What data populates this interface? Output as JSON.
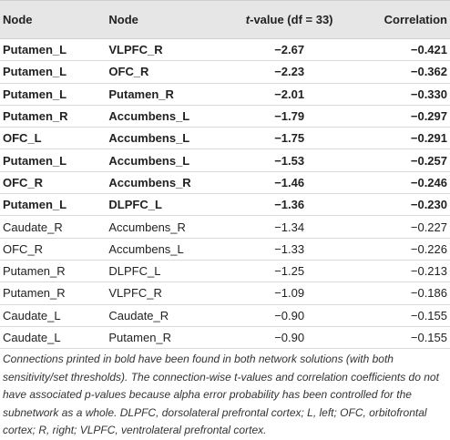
{
  "table": {
    "headers": {
      "node1": "Node",
      "node2": "Node",
      "tvalue_italic": "t",
      "tvalue_rest": "-value (df = 33)",
      "correlation": "Correlation"
    },
    "rows": [
      {
        "node1": "Putamen_L",
        "node2": "VLPFC_R",
        "t": "−2.67",
        "r": "−0.421",
        "bold": true
      },
      {
        "node1": "Putamen_L",
        "node2": "OFC_R",
        "t": "−2.23",
        "r": "−0.362",
        "bold": true
      },
      {
        "node1": "Putamen_L",
        "node2": "Putamen_R",
        "t": "−2.01",
        "r": "−0.330",
        "bold": true
      },
      {
        "node1": "Putamen_R",
        "node2": "Accumbens_L",
        "t": "−1.79",
        "r": "−0.297",
        "bold": true
      },
      {
        "node1": "OFC_L",
        "node2": "Accumbens_L",
        "t": "−1.75",
        "r": "−0.291",
        "bold": true
      },
      {
        "node1": "Putamen_L",
        "node2": "Accumbens_L",
        "t": "−1.53",
        "r": "−0.257",
        "bold": true
      },
      {
        "node1": "OFC_R",
        "node2": "Accumbens_R",
        "t": "−1.46",
        "r": "−0.246",
        "bold": true
      },
      {
        "node1": "Putamen_L",
        "node2": "DLPFC_L",
        "t": "−1.36",
        "r": "−0.230",
        "bold": true
      },
      {
        "node1": "Caudate_R",
        "node2": "Accumbens_R",
        "t": "−1.34",
        "r": "−0.227",
        "bold": false
      },
      {
        "node1": "OFC_R",
        "node2": "Accumbens_L",
        "t": "−1.33",
        "r": "−0.226",
        "bold": false
      },
      {
        "node1": "Putamen_R",
        "node2": "DLPFC_L",
        "t": "−1.25",
        "r": "−0.213",
        "bold": false
      },
      {
        "node1": "Putamen_R",
        "node2": "VLPFC_R",
        "t": "−1.09",
        "r": "−0.186",
        "bold": false
      },
      {
        "node1": "Caudate_L",
        "node2": "Caudate_R",
        "t": "−0.90",
        "r": "−0.155",
        "bold": false
      },
      {
        "node1": "Caudate_L",
        "node2": "Putamen_R",
        "t": "−0.90",
        "r": "−0.155",
        "bold": false
      }
    ]
  },
  "footnote": "Connections printed in bold have been found in both network solutions (with both sensitivity/set thresholds). The connection-wise t-values and correlation coefficients do not have associated p-values because alpha error probability has been controlled for the subnetwork as a whole. DLPFC, dorsolateral prefrontal cortex; L, left; OFC, orbitofrontal cortex; R, right; VLPFC, ventrolateral prefrontal cortex."
}
